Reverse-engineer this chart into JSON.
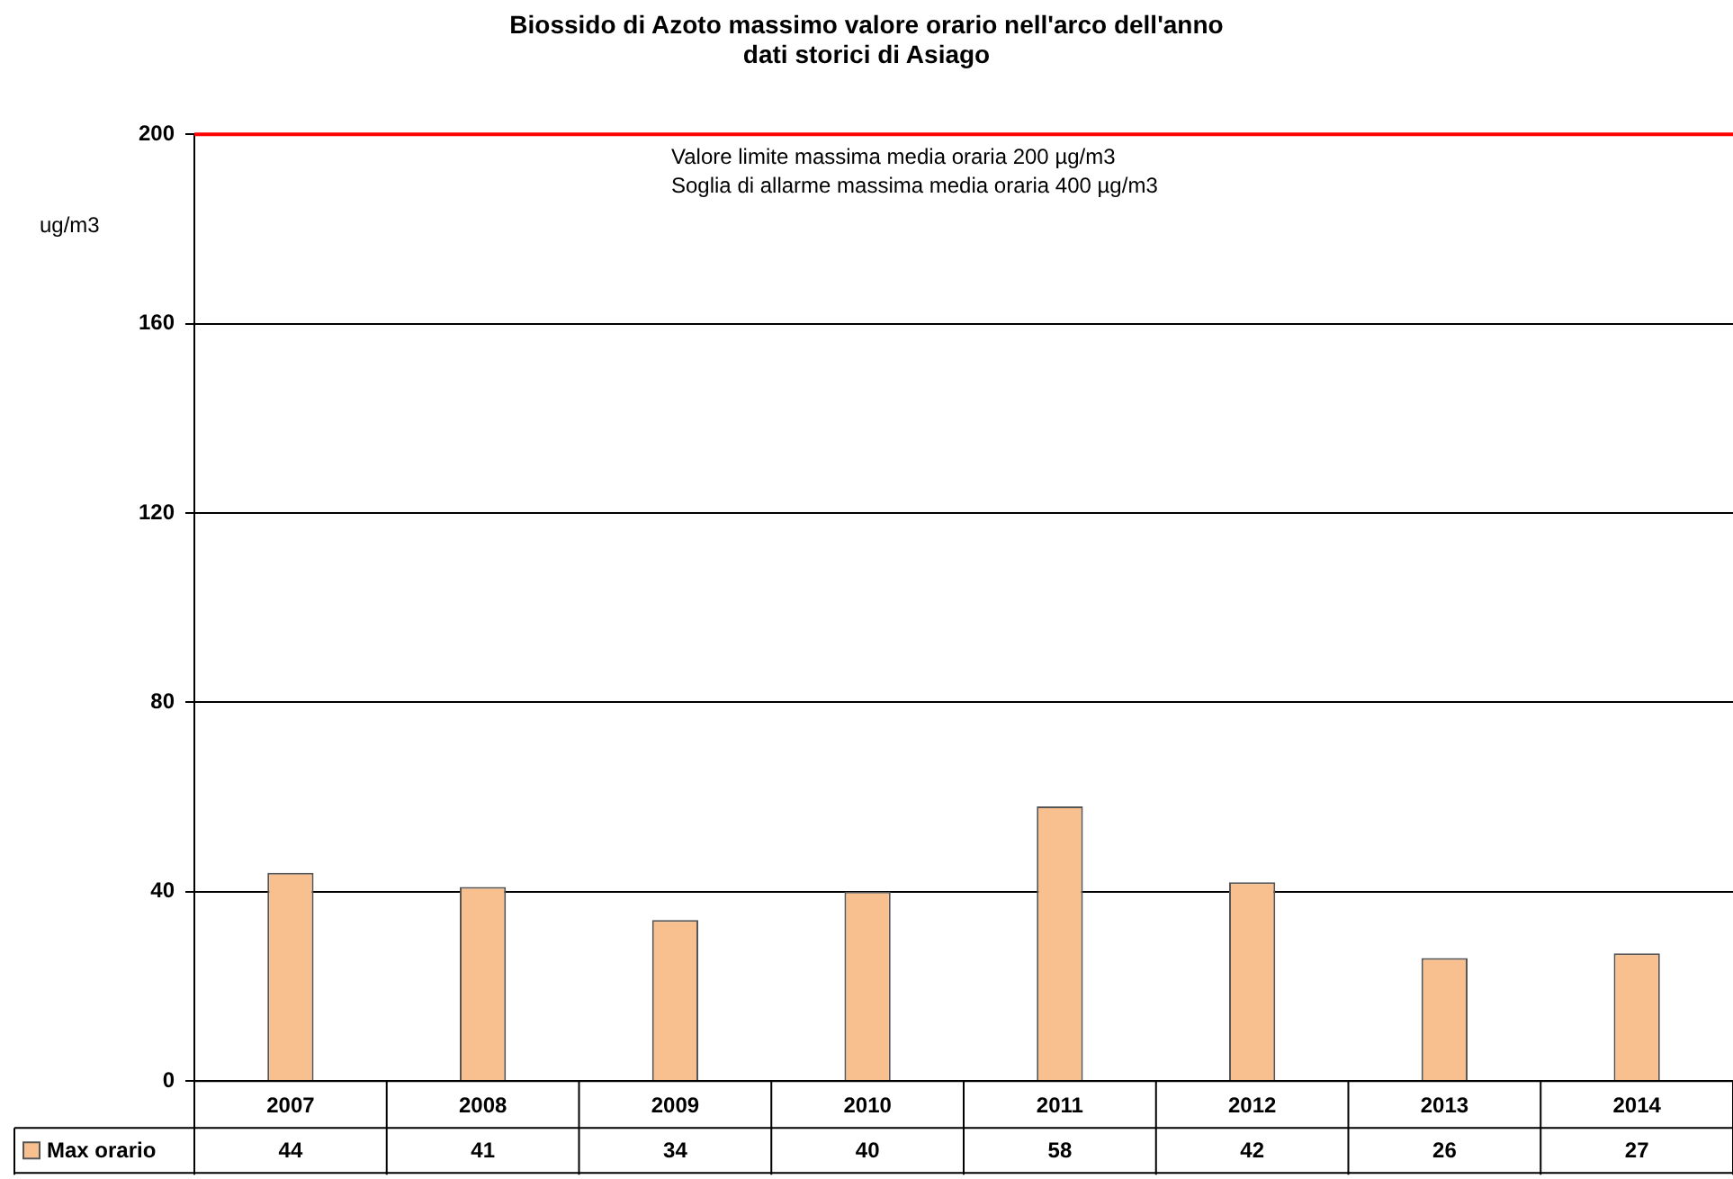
{
  "chart_data": {
    "type": "bar",
    "title": "Biossido di Azoto massimo valore orario nell'arco dell'anno",
    "subtitle": "dati storici di Asiago",
    "ylabel": "ug/m3",
    "annotations": [
      "Valore limite massima media oraria 200 µg/m3",
      "Soglia di allarme massima media oraria 400 µg/m3"
    ],
    "categories": [
      "2007",
      "2008",
      "2009",
      "2010",
      "2011",
      "2012",
      "2013",
      "2014"
    ],
    "series": [
      {
        "name": "Max orario",
        "color": "#f9c08f",
        "values": [
          44,
          41,
          34,
          40,
          58,
          42,
          26,
          27
        ]
      }
    ],
    "ylim": [
      0,
      200
    ],
    "yticks": [
      0,
      40,
      80,
      120,
      160,
      200
    ],
    "grid": "y",
    "data_labels": true,
    "legend": "bottom left",
    "ref_lines": [
      {
        "axis": "y",
        "value": 200,
        "color": "#ff0000"
      }
    ]
  }
}
